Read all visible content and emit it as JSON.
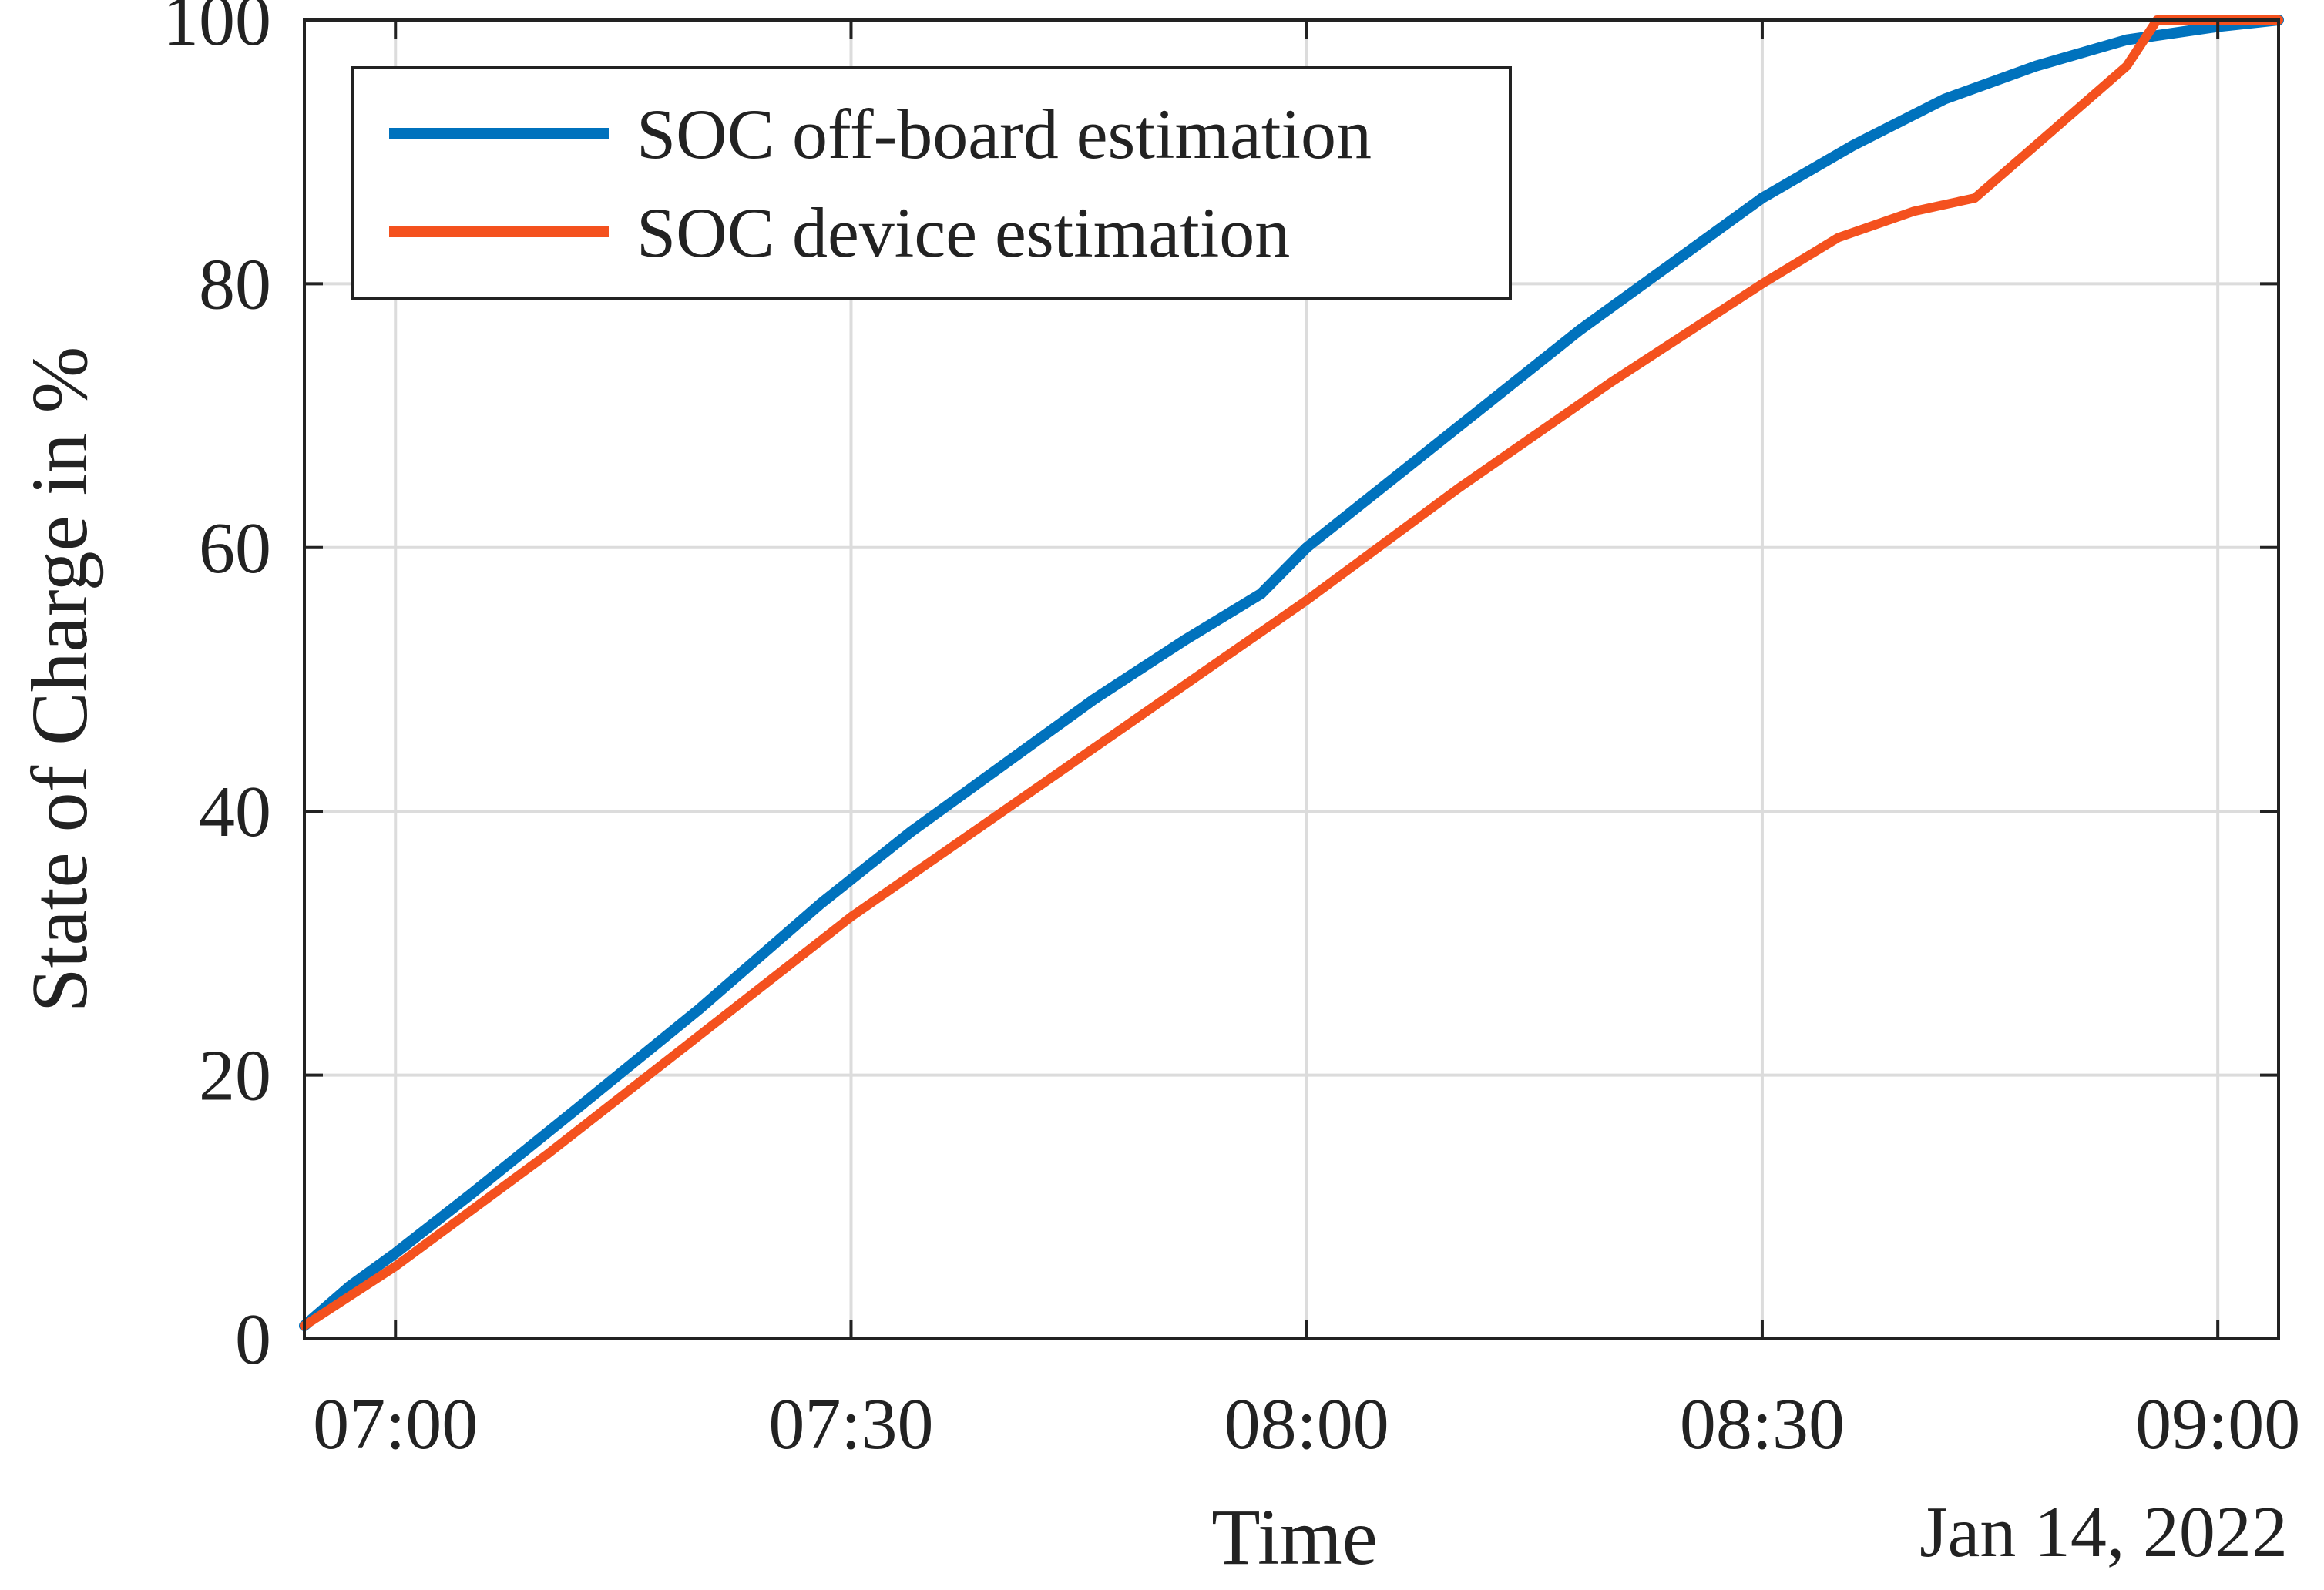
{
  "chart_data": {
    "type": "line",
    "title": "",
    "xlabel": "Time",
    "ylabel": "State of Charge in %",
    "date_label": "Jan 14, 2022",
    "xlim": [
      -6,
      124
    ],
    "ylim": [
      0,
      100
    ],
    "x_unit": "minutes after 07:00",
    "x_ticks": [
      0,
      30,
      60,
      90,
      120
    ],
    "x_tick_labels": [
      "07:00",
      "07:30",
      "08:00",
      "08:30",
      "09:00"
    ],
    "y_ticks": [
      0,
      20,
      40,
      60,
      80,
      100
    ],
    "y_tick_labels": [
      "0",
      "20",
      "40",
      "60",
      "80",
      "100"
    ],
    "grid": true,
    "legend_position": "top-left",
    "series": [
      {
        "name": "SOC off-board estimation",
        "color": "#0072BD",
        "x": [
          -6,
          -3,
          0,
          5,
          12,
          20,
          28,
          34,
          40,
          46,
          52,
          57,
          60,
          66,
          72,
          78,
          84,
          90,
          96,
          102,
          108,
          114,
          120,
          124
        ],
        "y": [
          1,
          4,
          6.5,
          11,
          17.5,
          25,
          33,
          38.5,
          43.5,
          48.5,
          53,
          56.5,
          60,
          65.5,
          71,
          76.5,
          81.5,
          86.5,
          90.5,
          94,
          96.5,
          98.5,
          99.5,
          100
        ]
      },
      {
        "name": "SOC device estimation",
        "color": "#F4511E",
        "x": [
          -6,
          0,
          10,
          20,
          30,
          40,
          50,
          60,
          70,
          80,
          90,
          95,
          100,
          104,
          110,
          114,
          116,
          124
        ],
        "y": [
          1,
          5.5,
          14,
          23,
          32,
          40,
          48,
          56,
          64.5,
          72.5,
          80,
          83.5,
          85.5,
          86.5,
          92.5,
          96.5,
          100,
          100
        ]
      }
    ]
  }
}
